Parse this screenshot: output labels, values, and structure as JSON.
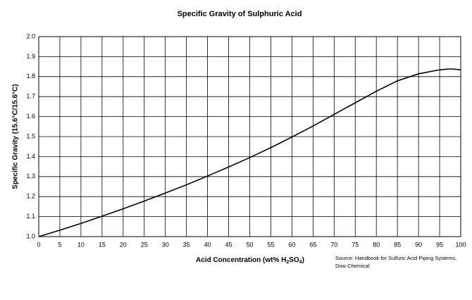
{
  "chart_data": {
    "type": "line",
    "title": "Specific Gravity of Sulphuric Acid",
    "y_label": "Specific Gravity (15.6°C/15.6°C)",
    "x_label": [
      "Acid Concentration (wt% H",
      "2",
      "SO",
      "4",
      ")"
    ],
    "source": [
      "Source: Handbook for Sulfuric Acid Piping Systems,",
      "Dow Chemical"
    ],
    "x": [
      0,
      5,
      10,
      15,
      20,
      25,
      30,
      35,
      40,
      45,
      50,
      55,
      60,
      65,
      70,
      75,
      80,
      85,
      90,
      95,
      97,
      98,
      100
    ],
    "series": [
      {
        "color": "#000000",
        "values": [
          1.0,
          1.032,
          1.066,
          1.102,
          1.139,
          1.178,
          1.218,
          1.259,
          1.303,
          1.348,
          1.395,
          1.445,
          1.498,
          1.553,
          1.611,
          1.669,
          1.727,
          1.779,
          1.814,
          1.834,
          1.838,
          1.838,
          1.834
        ]
      }
    ],
    "xlim": [
      0,
      100
    ],
    "xticks": [
      0,
      5,
      10,
      15,
      20,
      25,
      30,
      35,
      40,
      45,
      50,
      55,
      60,
      65,
      70,
      75,
      80,
      85,
      90,
      95,
      100
    ],
    "ylim": [
      1.0,
      2.0
    ],
    "yticks": [
      {
        "value": 1.0,
        "label": "1.0"
      },
      1.1,
      1.2,
      1.3,
      1.4,
      1.5,
      1.6,
      1.7,
      1.8,
      1.9,
      {
        "value": 2.0,
        "label": "2.0"
      }
    ],
    "grid": true
  }
}
